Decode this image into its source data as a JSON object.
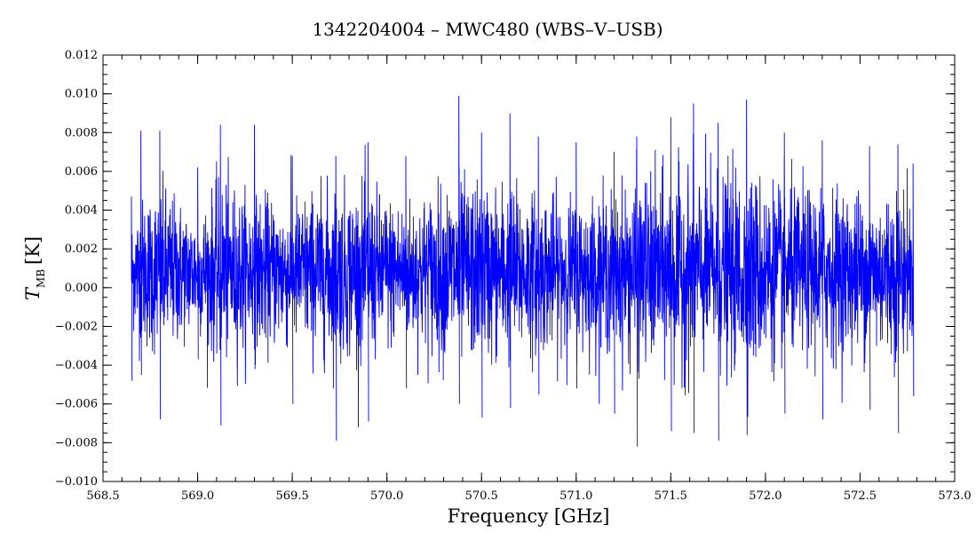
{
  "chart_data": {
    "type": "line",
    "title": "1342204004 – MWC480 (WBS–V–USB)",
    "xlabel": "Frequency [GHz]",
    "ylabel": {
      "main": "T",
      "subscript": "MB",
      "unit": "[K]"
    },
    "xlim": [
      568.5,
      573.0
    ],
    "ylim": [
      -0.01,
      0.012
    ],
    "x_ticks": [
      "568.5",
      "569.0",
      "569.5",
      "570.0",
      "570.5",
      "571.0",
      "571.5",
      "572.0",
      "572.5",
      "573.0"
    ],
    "y_ticks": [
      "0.012",
      "0.010",
      "0.008",
      "0.006",
      "0.004",
      "0.002",
      "0.000",
      "−0.002",
      "−0.004",
      "−0.006",
      "−0.008",
      "−0.010"
    ],
    "grid": false,
    "series": [
      {
        "color": "#0000ff",
        "x_range": [
          568.65,
          572.78
        ],
        "mean": 0.0008,
        "envelope": [
          {
            "x": 568.65,
            "min": -0.0048,
            "max": 0.0047
          },
          {
            "x": 568.7,
            "min": -0.0045,
            "max": 0.0081
          },
          {
            "x": 568.8,
            "min": -0.0068,
            "max": 0.0081
          },
          {
            "x": 569.0,
            "min": -0.0037,
            "max": 0.0062
          },
          {
            "x": 569.12,
            "min": -0.0071,
            "max": 0.0084
          },
          {
            "x": 569.3,
            "min": -0.0042,
            "max": 0.0084
          },
          {
            "x": 569.5,
            "min": -0.006,
            "max": 0.0068
          },
          {
            "x": 569.73,
            "min": -0.0079,
            "max": 0.0068
          },
          {
            "x": 569.9,
            "min": -0.0069,
            "max": 0.0075
          },
          {
            "x": 570.1,
            "min": -0.0052,
            "max": 0.0068
          },
          {
            "x": 570.38,
            "min": -0.006,
            "max": 0.0099
          },
          {
            "x": 570.5,
            "min": -0.0067,
            "max": 0.008
          },
          {
            "x": 570.65,
            "min": -0.0062,
            "max": 0.009
          },
          {
            "x": 570.8,
            "min": -0.0055,
            "max": 0.0078
          },
          {
            "x": 571.0,
            "min": -0.0052,
            "max": 0.0075
          },
          {
            "x": 571.2,
            "min": -0.0065,
            "max": 0.007
          },
          {
            "x": 571.32,
            "min": -0.0082,
            "max": 0.0078
          },
          {
            "x": 571.5,
            "min": -0.0074,
            "max": 0.0088
          },
          {
            "x": 571.62,
            "min": -0.0075,
            "max": 0.0095
          },
          {
            "x": 571.75,
            "min": -0.0079,
            "max": 0.0085
          },
          {
            "x": 571.9,
            "min": -0.0076,
            "max": 0.0097
          },
          {
            "x": 572.1,
            "min": -0.0065,
            "max": 0.008
          },
          {
            "x": 572.3,
            "min": -0.0068,
            "max": 0.0076
          },
          {
            "x": 572.55,
            "min": -0.0063,
            "max": 0.0073
          },
          {
            "x": 572.7,
            "min": -0.0075,
            "max": 0.0074
          },
          {
            "x": 572.78,
            "min": -0.0056,
            "max": 0.0064
          }
        ]
      }
    ]
  }
}
